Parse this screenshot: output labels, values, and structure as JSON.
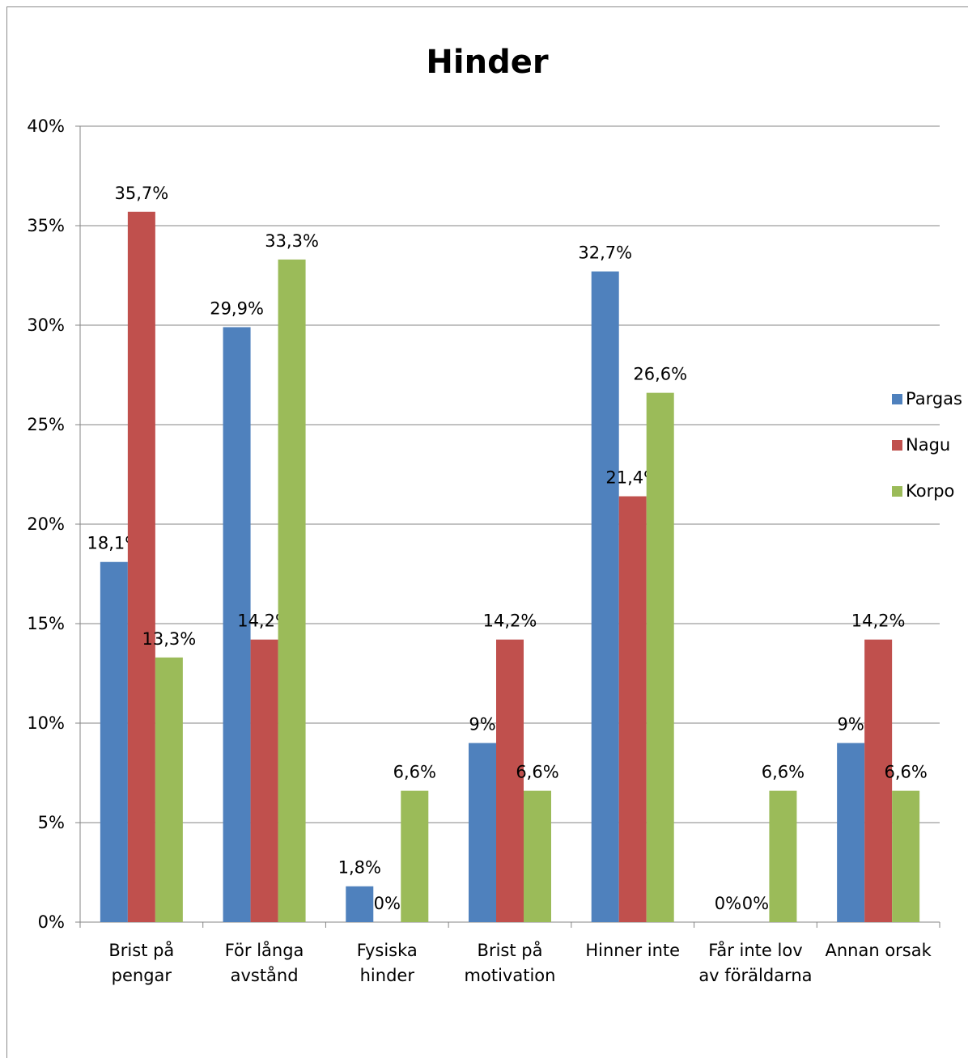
{
  "chart_data": {
    "type": "bar",
    "title": "Hinder",
    "xlabel": "",
    "ylabel": "",
    "ylim": [
      0,
      40
    ],
    "yticks": [
      "0%",
      "5%",
      "10%",
      "15%",
      "20%",
      "25%",
      "30%",
      "35%",
      "40%"
    ],
    "grid": true,
    "legend_position": "right",
    "categories": [
      [
        "Brist på",
        "pengar"
      ],
      [
        "För långa",
        "avstånd"
      ],
      [
        "Fysiska",
        "hinder"
      ],
      [
        "Brist på",
        "motivation"
      ],
      [
        "Hinner inte"
      ],
      [
        "Får inte lov",
        "av föräldarna"
      ],
      [
        "Annan orsak"
      ]
    ],
    "series": [
      {
        "name": "Pargas",
        "color": "#4f81bd",
        "values": [
          18.1,
          29.9,
          1.8,
          9,
          32.7,
          0,
          9
        ],
        "labels": [
          "18,1%",
          "29,9%",
          "1,8%",
          "9%",
          "32,7%",
          "0%",
          "9%"
        ]
      },
      {
        "name": "Nagu",
        "color": "#c0504d",
        "values": [
          35.7,
          14.2,
          0,
          14.2,
          21.4,
          0,
          14.2
        ],
        "labels": [
          "35,7%",
          "14,2%",
          "0%",
          "14,2%",
          "21,4%",
          "0%",
          "14,2%"
        ]
      },
      {
        "name": "Korpo",
        "color": "#9bbb59",
        "values": [
          13.3,
          33.3,
          6.6,
          6.6,
          26.6,
          6.6,
          6.6
        ],
        "labels": [
          "13,3%",
          "33,3%",
          "6,6%",
          "6,6%",
          "26,6%",
          "6,6%",
          "6,6%"
        ]
      }
    ]
  }
}
